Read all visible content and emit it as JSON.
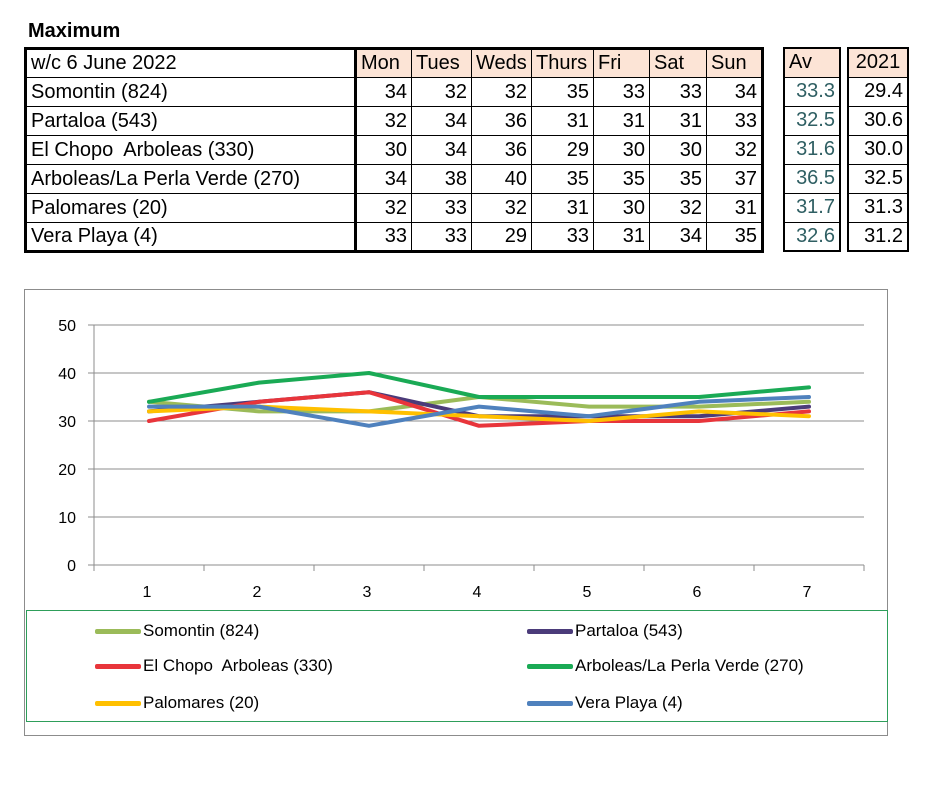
{
  "heading": "Maximum",
  "table": {
    "week_label": "w/c 6 June 2022",
    "days": [
      "Mon",
      "Tues",
      "Weds",
      "Thurs",
      "Fri",
      "Sat",
      "Sun"
    ],
    "av_header": "Av",
    "y2021_header": "2021",
    "rows": [
      {
        "name": "Somontin (824)",
        "vals": [
          "34",
          "32",
          "32",
          "35",
          "33",
          "33",
          "34"
        ],
        "av": "33.3",
        "y2021": "29.4"
      },
      {
        "name": "Partaloa (543)",
        "vals": [
          "32",
          "34",
          "36",
          "31",
          "31",
          "31",
          "33"
        ],
        "av": "32.5",
        "y2021": "30.6"
      },
      {
        "name": "El Chopo  Arboleas (330)",
        "vals": [
          "30",
          "34",
          "36",
          "29",
          "30",
          "30",
          "32"
        ],
        "av": "31.6",
        "y2021": "30.0"
      },
      {
        "name": "Arboleas/La Perla Verde (270)",
        "vals": [
          "34",
          "38",
          "40",
          "35",
          "35",
          "35",
          "37"
        ],
        "av": "36.5",
        "y2021": "32.5"
      },
      {
        "name": "Palomares (20)",
        "vals": [
          "32",
          "33",
          "32",
          "31",
          "30",
          "32",
          "31"
        ],
        "av": "31.7",
        "y2021": "31.3"
      },
      {
        "name": "Vera Playa (4)",
        "vals": [
          "33",
          "33",
          "29",
          "33",
          "31",
          "34",
          "35"
        ],
        "av": "32.6",
        "y2021": "31.2"
      }
    ]
  },
  "chart_data": {
    "type": "line",
    "title": "",
    "xlabel": "",
    "ylabel": "",
    "categories": [
      "1",
      "2",
      "3",
      "4",
      "5",
      "6",
      "7"
    ],
    "ylim": [
      0,
      50
    ],
    "yticks": [
      "0",
      "10",
      "20",
      "30",
      "40",
      "50"
    ],
    "grid": true,
    "legend_position": "bottom",
    "series": [
      {
        "name": "Somontin (824)",
        "color": "#9bbb59",
        "values": [
          34,
          32,
          32,
          35,
          33,
          33,
          34
        ]
      },
      {
        "name": "Partaloa (543)",
        "color": "#4b3b7a",
        "values": [
          32,
          34,
          36,
          31,
          31,
          31,
          33
        ]
      },
      {
        "name": "El Chopo  Arboleas (330)",
        "color": "#e8353b",
        "values": [
          30,
          34,
          36,
          29,
          30,
          30,
          32
        ]
      },
      {
        "name": "Arboleas/La Perla Verde (270)",
        "color": "#1aaa55",
        "values": [
          34,
          38,
          40,
          35,
          35,
          35,
          37
        ]
      },
      {
        "name": "Palomares (20)",
        "color": "#ffc000",
        "values": [
          32,
          33,
          32,
          31,
          30,
          32,
          31
        ]
      },
      {
        "name": "Vera Playa (4)",
        "color": "#4f81bd",
        "values": [
          33,
          33,
          29,
          33,
          31,
          34,
          35
        ]
      }
    ]
  }
}
